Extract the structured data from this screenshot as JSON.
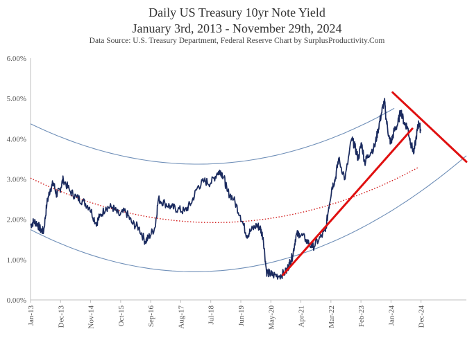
{
  "title_line1": "Daily  US Treasury 10yr Note Yield",
  "title_line2": "January 3rd, 2013 - November 29th, 2024",
  "source_line": "Data Source:  U.S.  Treasury Department, Federal Reserve    Chart by SurplusProductivity.Com",
  "chart_data": {
    "type": "line",
    "title": "Daily  US Treasury 10yr Note Yield",
    "subtitle": "January 3rd, 2013 - November 29th, 2024",
    "ylim": [
      0,
      6
    ],
    "y_ticks": [
      "0.00%",
      "1.00%",
      "2.00%",
      "3.00%",
      "4.00%",
      "5.00%",
      "6.00%"
    ],
    "x_ticks": [
      "Jan-13",
      "Dec-13",
      "Nov-14",
      "Oct-15",
      "Sep-16",
      "Aug-17",
      "Jul-18",
      "Jun-19",
      "May-20",
      "Apr-21",
      "Mar-22",
      "Feb-23",
      "Jan-24",
      "Dec-24"
    ],
    "grid": false,
    "series": [
      {
        "type": "line",
        "color": "#1a2a5e",
        "x": [
          2013.0,
          2013.1,
          2013.2,
          2013.3,
          2013.4,
          2013.5,
          2013.6,
          2013.7,
          2013.8,
          2013.9,
          2014.0,
          2014.2,
          2014.4,
          2014.6,
          2014.8,
          2015.0,
          2015.1,
          2015.3,
          2015.5,
          2015.7,
          2015.9,
          2016.1,
          2016.3,
          2016.5,
          2016.6,
          2016.8,
          2016.9,
          2017.1,
          2017.3,
          2017.5,
          2017.7,
          2017.9,
          2018.1,
          2018.3,
          2018.5,
          2018.7,
          2018.8,
          2018.9,
          2019.0,
          2019.2,
          2019.4,
          2019.6,
          2019.7,
          2019.9,
          2020.0,
          2020.1,
          2020.2,
          2020.3,
          2020.4,
          2020.6,
          2020.8,
          2020.9,
          2021.0,
          2021.1,
          2021.2,
          2021.4,
          2021.6,
          2021.8,
          2022.0,
          2022.1,
          2022.2,
          2022.3,
          2022.4,
          2022.6,
          2022.8,
          2022.9,
          2023.0,
          2023.1,
          2023.2,
          2023.3,
          2023.5,
          2023.6,
          2023.7,
          2023.8,
          2023.85,
          2023.95,
          2024.0,
          2024.1,
          2024.2,
          2024.3,
          2024.4,
          2024.5,
          2024.6,
          2024.7,
          2024.8,
          2024.85,
          2024.91
        ],
        "values": [
          1.85,
          1.95,
          1.9,
          1.75,
          1.7,
          2.4,
          2.75,
          2.9,
          2.6,
          2.75,
          3.0,
          2.7,
          2.55,
          2.45,
          2.3,
          1.9,
          2.05,
          2.3,
          2.3,
          2.1,
          2.2,
          1.9,
          1.8,
          1.45,
          1.55,
          1.8,
          2.5,
          2.4,
          2.3,
          2.25,
          2.2,
          2.4,
          2.8,
          2.95,
          2.9,
          3.15,
          3.2,
          3.05,
          2.7,
          2.5,
          2.1,
          1.6,
          1.7,
          1.85,
          1.8,
          1.55,
          0.7,
          0.65,
          0.62,
          0.6,
          0.7,
          0.9,
          1.1,
          1.6,
          1.65,
          1.5,
          1.3,
          1.5,
          1.7,
          2.3,
          2.8,
          3.0,
          3.5,
          3.0,
          4.0,
          3.8,
          3.5,
          3.9,
          3.4,
          3.6,
          3.8,
          4.2,
          4.6,
          4.95,
          4.5,
          4.0,
          3.9,
          4.2,
          4.35,
          4.7,
          4.4,
          4.3,
          3.9,
          3.65,
          4.2,
          4.4,
          4.2
        ]
      }
    ],
    "annotations": [
      {
        "type": "trend_channel_upper",
        "style": "thin steel-blue curve",
        "color": "#6f8fb8"
      },
      {
        "type": "trend_channel_lower",
        "style": "thin steel-blue curve",
        "color": "#6f8fb8"
      },
      {
        "type": "trend_midline",
        "style": "dotted",
        "color": "#d11a1a"
      },
      {
        "type": "trendline_rising",
        "style": "thick",
        "color": "#e01010"
      },
      {
        "type": "trendline_falling",
        "style": "thick",
        "color": "#e01010"
      }
    ]
  }
}
